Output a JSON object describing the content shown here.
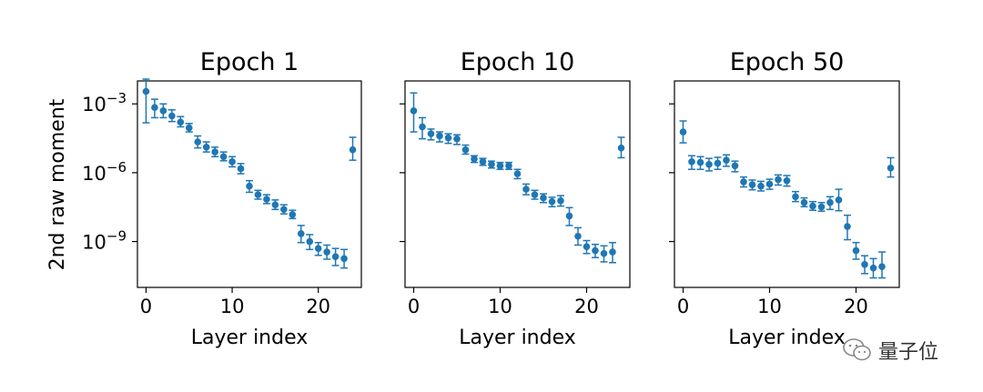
{
  "chart_data": {
    "type": "scatter",
    "ylabel": "2nd raw moment",
    "xlabel": "Layer index",
    "y_scale": "log",
    "ylim": [
      1e-11,
      0.01
    ],
    "xlim": [
      -1,
      25
    ],
    "x_ticks": [
      0,
      10,
      20
    ],
    "x_tick_labels": [
      "0",
      "10",
      "20"
    ],
    "y_ticks": [
      0.001,
      1e-06,
      1e-09
    ],
    "y_tick_labels": [
      {
        "base": "10",
        "exp": "−3"
      },
      {
        "base": "10",
        "exp": "−6"
      },
      {
        "base": "10",
        "exp": "−9"
      }
    ],
    "color": "#1f77b4",
    "panels": [
      {
        "title": "Epoch 1",
        "x": [
          0,
          1,
          2,
          3,
          4,
          5,
          6,
          7,
          8,
          9,
          10,
          11,
          12,
          13,
          14,
          15,
          16,
          17,
          18,
          19,
          20,
          21,
          22,
          23,
          24
        ],
        "y": [
          0.0035,
          0.0007,
          0.0005,
          0.0003,
          0.00016,
          9e-05,
          2.2e-05,
          1.3e-05,
          8e-06,
          5e-06,
          3e-06,
          1.5e-06,
          2.6e-07,
          1.1e-07,
          7e-08,
          4e-08,
          2.5e-08,
          1.5e-08,
          2.2e-09,
          1e-09,
          5e-10,
          3.5e-10,
          2.2e-10,
          1.8e-10,
          1e-05
        ],
        "err_lo": [
          0.00015,
          0.00025,
          0.00025,
          0.00017,
          0.0001,
          6e-05,
          1.2e-05,
          8e-06,
          5e-06,
          3.3e-06,
          1.8e-06,
          9e-07,
          1.4e-07,
          7e-08,
          4.5e-08,
          2.5e-08,
          1.6e-08,
          1e-08,
          9e-10,
          4.5e-10,
          2.5e-10,
          1.7e-10,
          9e-11,
          7e-11,
          3.5e-06
        ],
        "err_hi": [
          0.012,
          0.0016,
          0.001,
          0.00055,
          0.00028,
          0.00014,
          4e-05,
          2.2e-05,
          1.3e-05,
          8e-06,
          5e-06,
          2.5e-06,
          4.5e-07,
          1.7e-07,
          1.1e-07,
          6.5e-08,
          4e-08,
          2.3e-08,
          5e-09,
          2e-09,
          9e-10,
          7e-10,
          5e-10,
          4.5e-10,
          3.5e-05
        ]
      },
      {
        "title": "Epoch 10",
        "x": [
          0,
          1,
          2,
          3,
          4,
          5,
          6,
          7,
          8,
          9,
          10,
          11,
          12,
          13,
          14,
          15,
          16,
          17,
          18,
          19,
          20,
          21,
          22,
          23,
          24
        ],
        "y": [
          0.0005,
          0.0001,
          5e-05,
          4e-05,
          3.3e-05,
          3e-05,
          1e-05,
          4e-06,
          3e-06,
          2.3e-06,
          2e-06,
          2e-06,
          9e-07,
          1.9e-07,
          1.1e-07,
          8e-08,
          5.5e-08,
          6e-08,
          1.3e-08,
          1.7e-09,
          6e-10,
          4e-10,
          3e-10,
          3.5e-10,
          1.2e-05
        ],
        "err_lo": [
          6e-05,
          3e-05,
          2.7e-05,
          2.2e-05,
          1.9e-05,
          1.7e-05,
          6.5e-06,
          2.8e-06,
          2.1e-06,
          1.6e-06,
          1.4e-06,
          1.4e-06,
          5.5e-07,
          1.1e-07,
          7e-08,
          5e-08,
          3.3e-08,
          3.5e-08,
          5e-09,
          7e-10,
          3e-10,
          2e-10,
          1.3e-10,
          1.2e-10,
          4.5e-06
        ],
        "err_hi": [
          0.003,
          0.00025,
          8e-05,
          6e-05,
          5e-05,
          4.5e-05,
          1.6e-05,
          5.5e-06,
          4.2e-06,
          3.2e-06,
          2.8e-06,
          2.8e-06,
          1.4e-06,
          3.2e-07,
          1.7e-07,
          1.2e-07,
          8.5e-08,
          1e-07,
          3e-08,
          4e-09,
          1.1e-09,
          7.5e-10,
          6.5e-10,
          9e-10,
          3.5e-05
        ]
      },
      {
        "title": "Epoch 50",
        "x": [
          0,
          1,
          2,
          3,
          4,
          5,
          6,
          7,
          8,
          9,
          10,
          11,
          12,
          13,
          14,
          15,
          16,
          17,
          18,
          19,
          20,
          21,
          22,
          23,
          24
        ],
        "y": [
          6e-05,
          3e-06,
          2.8e-06,
          2.3e-06,
          2.6e-06,
          3.5e-06,
          2e-06,
          4e-07,
          3e-07,
          2.6e-07,
          3.2e-07,
          5e-07,
          4.5e-07,
          9e-08,
          5e-08,
          3.5e-08,
          3.2e-08,
          5e-08,
          6.5e-08,
          4.5e-09,
          4e-10,
          1e-10,
          7e-11,
          8e-11,
          1.6e-06
        ],
        "err_lo": [
          2e-05,
          1.4e-06,
          1.4e-06,
          1.2e-06,
          1.4e-06,
          1.9e-06,
          1.1e-06,
          2.4e-07,
          1.8e-07,
          1.6e-07,
          1.9e-07,
          2.9e-07,
          2.6e-07,
          5.5e-08,
          3.3e-08,
          2.3e-08,
          2.1e-08,
          2.5e-08,
          2.2e-08,
          1.2e-09,
          1.7e-10,
          4e-11,
          2.6e-11,
          2.6e-11,
          6.5e-07
        ],
        "err_hi": [
          0.00018,
          5.5e-06,
          5e-06,
          4.2e-06,
          4.7e-06,
          6e-06,
          3.2e-06,
          6.5e-07,
          4.8e-07,
          4.2e-07,
          5.2e-07,
          8e-07,
          7.5e-07,
          1.5e-07,
          8e-08,
          5.5e-08,
          5e-08,
          9e-08,
          1.9e-07,
          1.4e-08,
          9e-10,
          2.4e-10,
          1.8e-10,
          3.5e-10,
          4.5e-06
        ]
      }
    ]
  },
  "watermark": {
    "text": "量子位",
    "icon": "wechat-icon"
  }
}
